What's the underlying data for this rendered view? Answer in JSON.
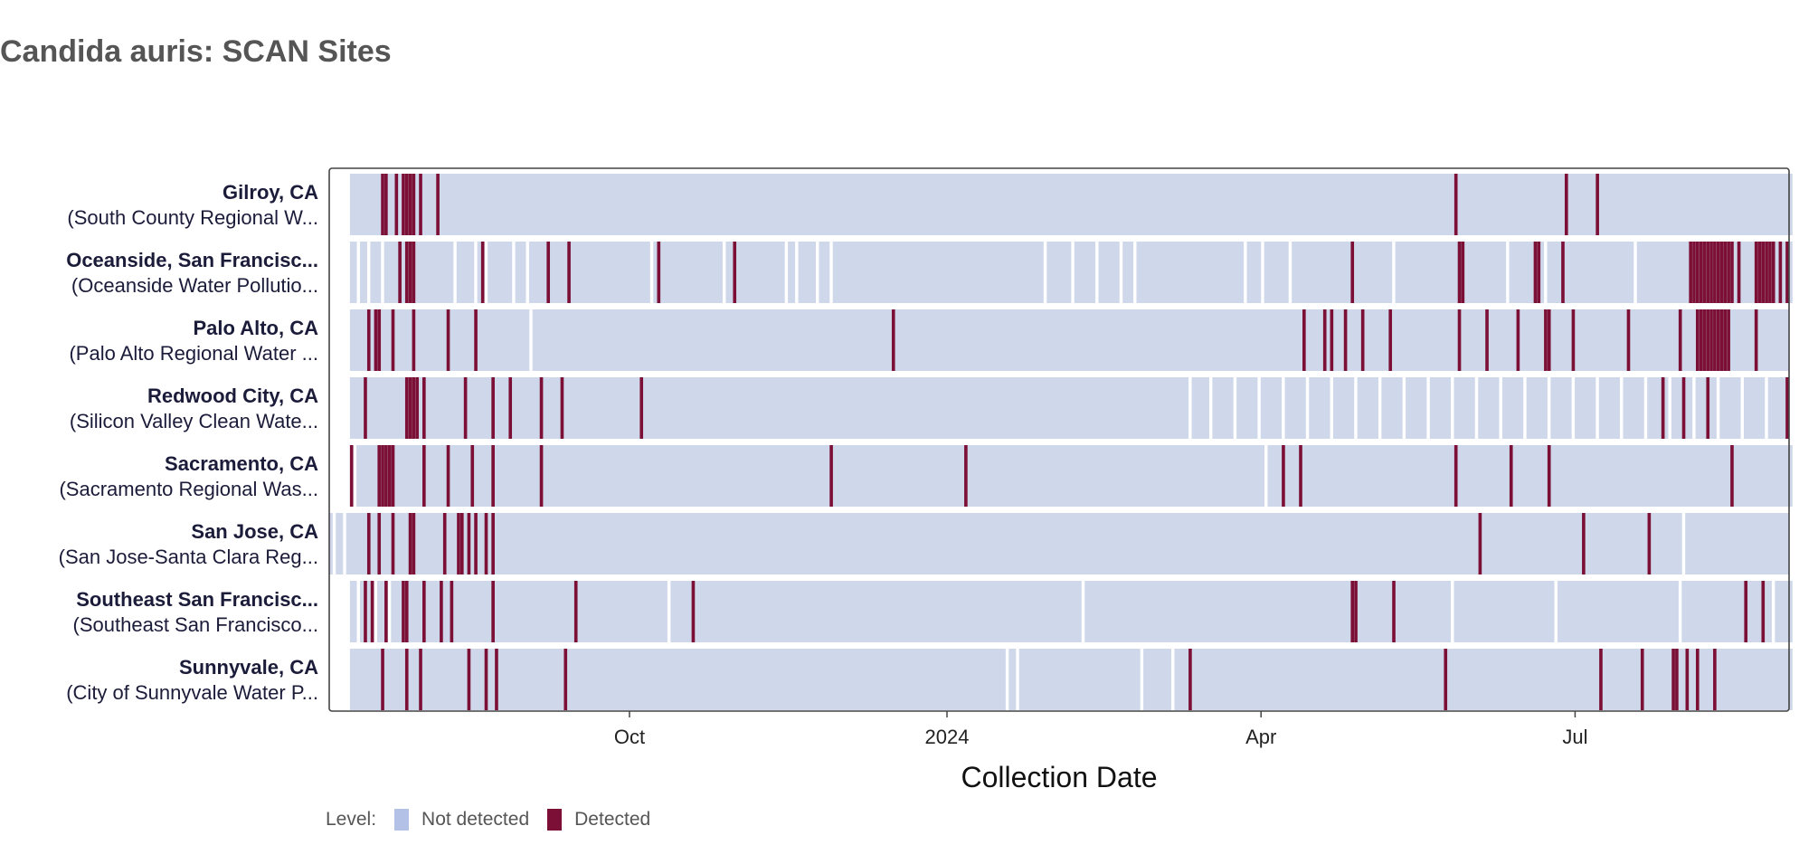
{
  "title": "Candida auris: SCAN Sites",
  "colors": {
    "not_detected": "#cfd7ea",
    "not_detected_legend": "#b3c1e6",
    "detected": "#7b0f35",
    "gap": "#ffffff",
    "frame": "#444444"
  },
  "legend": {
    "label": "Level:",
    "items": [
      {
        "name": "Not detected",
        "color": "#b3c1e6"
      },
      {
        "name": "Detected",
        "color": "#7b0f35"
      }
    ]
  },
  "chart_data": {
    "type": "heatmap",
    "title": "Candida auris: SCAN Sites",
    "xlabel": "Collection Date",
    "x_range": [
      "2023-07-06",
      "2024-09-01"
    ],
    "x_ticks": [
      {
        "date": "2023-10-01",
        "label": "Oct"
      },
      {
        "date": "2024-01-01",
        "label": "2024"
      },
      {
        "date": "2024-04-01",
        "label": "Apr"
      },
      {
        "date": "2024-07-01",
        "label": "Jul"
      }
    ],
    "levels": [
      "Not detected",
      "Detected"
    ],
    "sites": [
      {
        "name": "Gilroy, CA",
        "plant": "(South County Regional W...",
        "start": "2023-07-12",
        "end": "2024-09-01",
        "gaps": [],
        "detected": [
          "2023-07-21",
          "2023-07-22",
          "2023-07-25",
          "2023-07-27",
          "2023-07-28",
          "2023-07-29",
          "2023-07-30",
          "2023-08-01",
          "2023-08-06",
          "2024-05-27",
          "2024-06-28",
          "2024-07-07"
        ]
      },
      {
        "name": "Oceanside, San Francisc...",
        "plant": "(Oceanside Water Pollutio...",
        "start": "2023-07-12",
        "end": "2024-09-01",
        "gaps": [
          "2023-07-14",
          "2023-07-17",
          "2023-07-21",
          "2023-08-11",
          "2023-08-17",
          "2023-08-20",
          "2023-08-28",
          "2023-09-01",
          "2023-10-07",
          "2023-10-28",
          "2023-11-15",
          "2023-11-18",
          "2023-11-24",
          "2023-11-28",
          "2024-01-29",
          "2024-02-06",
          "2024-02-13",
          "2024-02-20",
          "2024-02-24",
          "2024-03-27",
          "2024-04-01",
          "2024-04-09",
          "2024-05-09",
          "2024-05-29",
          "2024-06-11",
          "2024-06-22",
          "2024-07-18",
          "2024-08-03",
          "2024-08-11",
          "2024-08-22"
        ],
        "detected": [
          "2023-07-26",
          "2023-07-28",
          "2023-07-29",
          "2023-07-30",
          "2023-08-19",
          "2023-09-07",
          "2023-09-13",
          "2023-10-09",
          "2023-10-31",
          "2024-04-27",
          "2024-05-28",
          "2024-05-29",
          "2024-06-19",
          "2024-06-20",
          "2024-06-27",
          "2024-08-03",
          "2024-08-04",
          "2024-08-05",
          "2024-08-06",
          "2024-08-07",
          "2024-08-08",
          "2024-08-09",
          "2024-08-10",
          "2024-08-11",
          "2024-08-12",
          "2024-08-13",
          "2024-08-14",
          "2024-08-15",
          "2024-08-17",
          "2024-08-22",
          "2024-08-23",
          "2024-08-24",
          "2024-08-25",
          "2024-08-26",
          "2024-08-27",
          "2024-08-29",
          "2024-08-31"
        ]
      },
      {
        "name": "Palo Alto, CA",
        "plant": "(Palo Alto Regional Water ...",
        "start": "2023-07-12",
        "end": "2024-08-31",
        "gaps": [
          "2023-09-02"
        ],
        "detected": [
          "2023-07-17",
          "2023-07-19",
          "2023-07-20",
          "2023-07-24",
          "2023-07-30",
          "2023-08-09",
          "2023-08-17",
          "2023-12-16",
          "2024-04-13",
          "2024-04-19",
          "2024-04-21",
          "2024-04-25",
          "2024-04-30",
          "2024-05-08",
          "2024-05-28",
          "2024-06-05",
          "2024-06-14",
          "2024-06-22",
          "2024-06-23",
          "2024-06-30",
          "2024-07-16",
          "2024-07-31",
          "2024-08-05",
          "2024-08-06",
          "2024-08-07",
          "2024-08-08",
          "2024-08-09",
          "2024-08-10",
          "2024-08-11",
          "2024-08-12",
          "2024-08-13",
          "2024-08-14",
          "2024-08-22"
        ]
      },
      {
        "name": "Redwood City, CA",
        "plant": "(Silicon Valley Clean Wate...",
        "start": "2023-07-12",
        "end": "2024-08-31",
        "gaps": [
          "2024-03-11",
          "2024-03-17",
          "2024-03-24",
          "2024-03-31",
          "2024-04-07",
          "2024-04-14",
          "2024-04-21",
          "2024-04-28",
          "2024-05-05",
          "2024-05-12",
          "2024-05-19",
          "2024-05-26",
          "2024-06-02",
          "2024-06-09",
          "2024-06-16",
          "2024-06-23",
          "2024-06-30",
          "2024-07-07",
          "2024-07-14",
          "2024-07-21",
          "2024-07-28",
          "2024-08-04",
          "2024-08-11",
          "2024-08-18",
          "2024-08-25"
        ],
        "detected": [
          "2023-07-16",
          "2023-07-28",
          "2023-07-29",
          "2023-07-30",
          "2023-07-31",
          "2023-08-02",
          "2023-08-14",
          "2023-08-22",
          "2023-08-27",
          "2023-09-05",
          "2023-09-11",
          "2023-10-04",
          "2024-07-26",
          "2024-08-01",
          "2024-08-08",
          "2024-08-31"
        ]
      },
      {
        "name": "Sacramento, CA",
        "plant": "(Sacramento Regional Was...",
        "start": "2023-07-12",
        "end": "2024-09-01",
        "gaps": [
          "2023-07-13",
          "2024-04-02"
        ],
        "detected": [
          "2023-07-12",
          "2023-07-20",
          "2023-07-21",
          "2023-07-22",
          "2023-07-23",
          "2023-07-24",
          "2023-08-02",
          "2023-08-09",
          "2023-08-16",
          "2023-08-22",
          "2023-09-05",
          "2023-11-28",
          "2024-01-06",
          "2024-04-07",
          "2024-04-12",
          "2024-05-27",
          "2024-06-12",
          "2024-06-23",
          "2024-08-15"
        ]
      },
      {
        "name": "San Jose, CA",
        "plant": "(San Jose-Santa Clara Reg...",
        "start": "2023-07-06",
        "end": "2024-08-31",
        "gaps": [
          "2023-07-07",
          "2023-07-10",
          "2024-08-01"
        ],
        "detected": [
          "2023-07-17",
          "2023-07-20",
          "2023-07-24",
          "2023-07-29",
          "2023-07-30",
          "2023-08-08",
          "2023-08-12",
          "2023-08-13",
          "2023-08-15",
          "2023-08-17",
          "2023-08-20",
          "2023-08-22",
          "2024-06-03",
          "2024-07-03",
          "2024-07-22"
        ]
      },
      {
        "name": "Southeast San Francisc...",
        "plant": "(Southeast San Francisco...",
        "start": "2023-07-12",
        "end": "2024-09-01",
        "gaps": [
          "2023-07-14",
          "2023-07-19",
          "2023-07-23",
          "2023-10-12",
          "2024-02-09",
          "2024-05-26",
          "2024-06-25",
          "2024-07-31",
          "2024-08-27"
        ],
        "detected": [
          "2023-07-16",
          "2023-07-18",
          "2023-07-22",
          "2023-07-27",
          "2023-07-28",
          "2023-08-02",
          "2023-08-07",
          "2023-08-10",
          "2023-08-22",
          "2023-09-15",
          "2023-10-19",
          "2024-04-27",
          "2024-04-28",
          "2024-05-09",
          "2024-08-19",
          "2024-08-24"
        ]
      },
      {
        "name": "Sunnyvale, CA",
        "plant": "(City of Sunnyvale Water P...",
        "start": "2023-07-12",
        "end": "2024-09-01",
        "gaps": [
          "2024-01-18",
          "2024-01-21",
          "2024-02-26",
          "2024-03-06"
        ],
        "detected": [
          "2023-07-21",
          "2023-07-28",
          "2023-08-01",
          "2023-08-15",
          "2023-08-20",
          "2023-08-23",
          "2023-09-12",
          "2024-03-11",
          "2024-05-24",
          "2024-07-08",
          "2024-07-20",
          "2024-07-29",
          "2024-07-30",
          "2024-08-02",
          "2024-08-05",
          "2024-08-10"
        ]
      }
    ]
  }
}
